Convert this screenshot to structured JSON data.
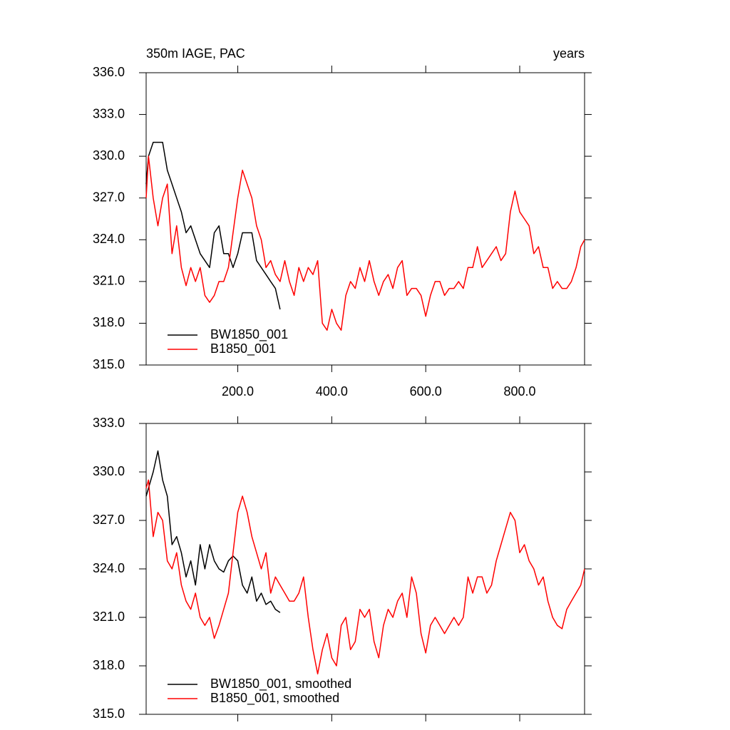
{
  "chart_data": [
    {
      "type": "line",
      "title": "350m IAGE, PAC",
      "right_label": "years",
      "x": [
        5,
        10,
        20,
        30,
        40,
        50,
        60,
        70,
        80,
        90,
        100,
        110,
        120,
        130,
        140,
        150,
        160,
        170,
        180,
        190,
        200,
        210,
        220,
        230,
        240,
        250,
        260,
        270,
        280,
        290,
        300,
        310,
        320,
        330,
        340,
        350,
        360,
        370,
        380,
        390,
        400,
        410,
        420,
        430,
        440,
        450,
        460,
        470,
        480,
        490,
        500,
        510,
        520,
        530,
        540,
        550,
        560,
        570,
        580,
        590,
        600,
        610,
        620,
        630,
        640,
        650,
        660,
        670,
        680,
        690,
        700,
        710,
        720,
        730,
        740,
        750,
        760,
        770,
        780,
        790,
        800,
        810,
        820,
        830,
        840,
        850,
        860,
        870,
        880,
        890,
        900,
        910,
        920,
        930,
        938
      ],
      "series": [
        {
          "name": "BW1850_001",
          "color": "#000000",
          "values": [
            328,
            330,
            331,
            331,
            331,
            329,
            328,
            327,
            326,
            324.5,
            325,
            324,
            323,
            322.5,
            322,
            324.5,
            325,
            323,
            323,
            322,
            323,
            324.5,
            324.5,
            324.5,
            322.5,
            322,
            321.5,
            321,
            320.5,
            319,
            null,
            null,
            null,
            null,
            null,
            null,
            null,
            null,
            null,
            null,
            null,
            null,
            null,
            null,
            null,
            null,
            null,
            null,
            null,
            null,
            null,
            null,
            null,
            null,
            null,
            null,
            null,
            null,
            null,
            null,
            null,
            null,
            null,
            null,
            null,
            null,
            null,
            null,
            null,
            null,
            null,
            null,
            null,
            null,
            null,
            null,
            null,
            null,
            null,
            null,
            null,
            null,
            null,
            null,
            null,
            null,
            null,
            null,
            null,
            null,
            null,
            null,
            null,
            null,
            null
          ]
        },
        {
          "name": "B1850_001",
          "color": "#ff0000",
          "values": [
            327,
            330,
            327,
            325,
            327,
            328,
            323,
            325,
            322,
            320.7,
            322,
            321,
            322,
            320,
            319.5,
            320,
            321,
            321,
            322,
            324.5,
            327,
            329,
            328,
            327,
            325,
            324,
            322,
            322.5,
            321.5,
            321,
            322.5,
            321,
            320,
            322,
            321,
            322,
            321.5,
            322.5,
            318,
            317.5,
            319,
            318,
            317.5,
            320,
            321,
            320.5,
            322,
            321,
            322.5,
            321,
            320,
            321,
            321.5,
            320.5,
            322,
            322.5,
            320,
            320.5,
            320.5,
            320,
            318.5,
            320,
            321,
            321,
            320,
            320.5,
            320.5,
            321,
            320.5,
            322,
            322,
            323.5,
            322,
            322.5,
            323,
            323.5,
            322.5,
            323,
            326,
            327.5,
            326,
            325.5,
            325,
            323,
            323.5,
            322,
            322,
            320.5,
            321,
            320.5,
            320.5,
            321,
            322,
            323.5,
            324
          ]
        }
      ],
      "xlim": [
        5,
        938
      ],
      "ylim": [
        315,
        336
      ],
      "xticks": [
        {
          "value": 200,
          "label": "200.0"
        },
        {
          "value": 400,
          "label": "400.0"
        },
        {
          "value": 600,
          "label": "600.0"
        },
        {
          "value": 800,
          "label": "800.0"
        }
      ],
      "yticks": [
        {
          "value": 315,
          "label": "315.0"
        },
        {
          "value": 318,
          "label": "318.0"
        },
        {
          "value": 321,
          "label": "321.0"
        },
        {
          "value": 324,
          "label": "324.0"
        },
        {
          "value": 327,
          "label": "327.0"
        },
        {
          "value": 330,
          "label": "330.0"
        },
        {
          "value": 333,
          "label": "333.0"
        },
        {
          "value": 336,
          "label": "336.0"
        }
      ],
      "legend": "lower left"
    },
    {
      "type": "line",
      "x": [
        5,
        10,
        20,
        30,
        40,
        50,
        60,
        70,
        80,
        90,
        100,
        110,
        120,
        130,
        140,
        150,
        160,
        170,
        180,
        190,
        200,
        210,
        220,
        230,
        240,
        250,
        260,
        270,
        280,
        290,
        300,
        310,
        320,
        330,
        340,
        350,
        360,
        370,
        380,
        390,
        400,
        410,
        420,
        430,
        440,
        450,
        460,
        470,
        480,
        490,
        500,
        510,
        520,
        530,
        540,
        550,
        560,
        570,
        580,
        590,
        600,
        610,
        620,
        630,
        640,
        650,
        660,
        670,
        680,
        690,
        700,
        710,
        720,
        730,
        740,
        750,
        760,
        770,
        780,
        790,
        800,
        810,
        820,
        830,
        840,
        850,
        860,
        870,
        880,
        890,
        900,
        910,
        920,
        930,
        938
      ],
      "series": [
        {
          "name": "BW1850_001, smoothed",
          "color": "#000000",
          "values": [
            328.5,
            329,
            330,
            331.3,
            329.5,
            328.5,
            325.5,
            326,
            325,
            323.5,
            324.5,
            323,
            325.5,
            324,
            325.5,
            324.5,
            324,
            323.8,
            324.5,
            324.8,
            324.5,
            323,
            322.5,
            323.5,
            322,
            322.5,
            321.8,
            322,
            321.5,
            321.3,
            null,
            null,
            null,
            null,
            null,
            null,
            null,
            null,
            null,
            null,
            null,
            null,
            null,
            null,
            null,
            null,
            null,
            null,
            null,
            null,
            null,
            null,
            null,
            null,
            null,
            null,
            null,
            null,
            null,
            null,
            null,
            null,
            null,
            null,
            null,
            null,
            null,
            null,
            null,
            null,
            null,
            null,
            null,
            null,
            null,
            null,
            null,
            null,
            null,
            null,
            null,
            null,
            null,
            null,
            null,
            null,
            null,
            null,
            null,
            null,
            null,
            null,
            null,
            null,
            null
          ]
        },
        {
          "name": "B1850_001, smoothed",
          "color": "#ff0000",
          "values": [
            329,
            329.5,
            326,
            327.5,
            327,
            324.5,
            324,
            325,
            323,
            322,
            321.5,
            322.5,
            321,
            320.5,
            321,
            319.7,
            320.5,
            321.5,
            322.5,
            325,
            327.5,
            328.5,
            327.5,
            326,
            325,
            324,
            325,
            322.5,
            323.5,
            323,
            322.5,
            322,
            322,
            322.5,
            323.5,
            321,
            319,
            317.5,
            319,
            320,
            318.5,
            318,
            320.5,
            321,
            319,
            319.5,
            321.5,
            321,
            321.5,
            319.5,
            318.5,
            320.5,
            321.5,
            321,
            322,
            322.5,
            321,
            323.5,
            322.5,
            320,
            318.8,
            320.5,
            321,
            320.5,
            320,
            320.5,
            321,
            320.5,
            321,
            323.5,
            322.5,
            323.5,
            323.5,
            322.5,
            323,
            324.5,
            325.5,
            326.5,
            327.5,
            327,
            325,
            325.5,
            324.5,
            324,
            323,
            323.5,
            322,
            321,
            320.5,
            320.3,
            321.5,
            322,
            322.5,
            323,
            324
          ]
        }
      ],
      "xlim": [
        5,
        938
      ],
      "ylim": [
        315,
        333
      ],
      "xticks": [
        200,
        400,
        600,
        800
      ],
      "yticks": [
        {
          "value": 315,
          "label": "315.0"
        },
        {
          "value": 318,
          "label": "318.0"
        },
        {
          "value": 321,
          "label": "321.0"
        },
        {
          "value": 324,
          "label": "324.0"
        },
        {
          "value": 327,
          "label": "327.0"
        },
        {
          "value": 330,
          "label": "330.0"
        },
        {
          "value": 333,
          "label": "333.0"
        }
      ],
      "legend": "lower left"
    }
  ]
}
